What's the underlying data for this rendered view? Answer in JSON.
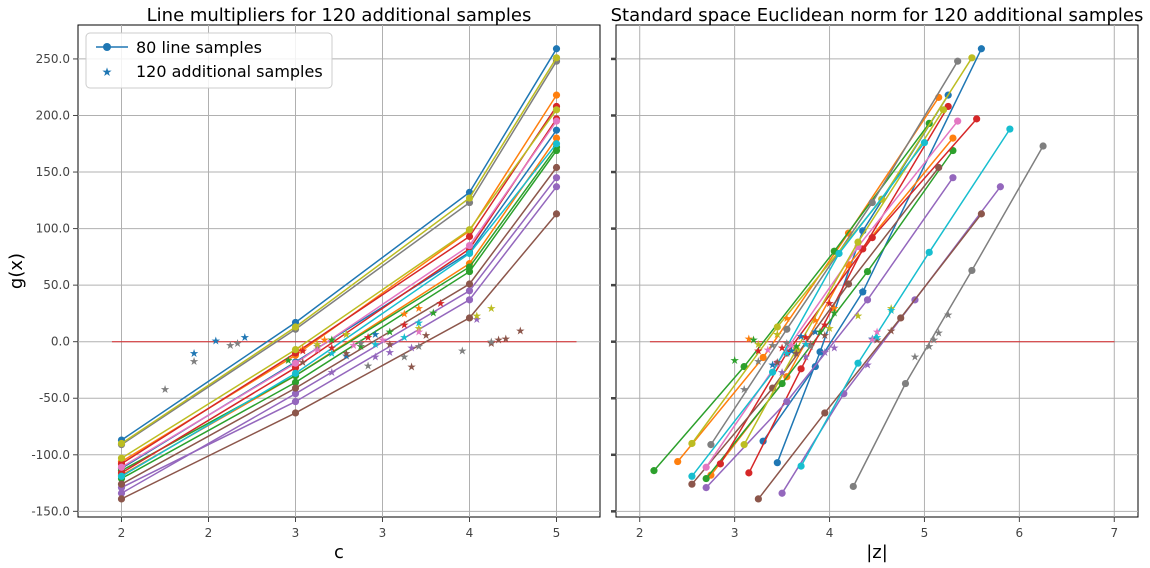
{
  "palette": [
    "#1f77b4",
    "#ff7f0e",
    "#2ca02c",
    "#d62728",
    "#9467bd",
    "#8c564b",
    "#e377c2",
    "#7f7f7f",
    "#bcbd22",
    "#17becf"
  ],
  "zero_line_color": "#d62728",
  "grid": true,
  "chart_data": [
    {
      "type": "line",
      "title": "Line multipliers for 120 additional samples",
      "xlabel": "c",
      "ylabel": "g(x)",
      "xlim": [
        1.7,
        5.3
      ],
      "ylim": [
        -155,
        280
      ],
      "xticks": [
        2,
        2.6,
        3.2,
        3.8,
        4.4,
        5.0
      ],
      "xtick_labels": [
        "2",
        "2",
        "3",
        "3",
        "4",
        "5"
      ],
      "yticks": [
        -150,
        -100,
        -50,
        0,
        50,
        100,
        150,
        200,
        250
      ],
      "ytick_labels": [
        "-150.0",
        "-100.0",
        "-50.0",
        "0.0",
        "50.0",
        "100.0",
        "150.0",
        "200.0",
        "250.0"
      ],
      "legend": {
        "placement": "top-left",
        "entries": [
          "80 line samples",
          "120 additional samples"
        ]
      },
      "x_samples": [
        2.0,
        3.2,
        4.4,
        5.0
      ],
      "series": [
        {
          "color": "#1f77b4",
          "y": [
            -87,
            17,
            132,
            259
          ]
        },
        {
          "color": "#1f77b4",
          "y": [
            -112,
            -18,
            79,
            187
          ]
        },
        {
          "color": "#ff7f0e",
          "y": [
            -106,
            -12,
            98,
            218
          ]
        },
        {
          "color": "#ff7f0e",
          "y": [
            -118,
            -30,
            69,
            180
          ]
        },
        {
          "color": "#2ca02c",
          "y": [
            -114,
            -30,
            66,
            172
          ]
        },
        {
          "color": "#2ca02c",
          "y": [
            -121,
            -36,
            62,
            169
          ]
        },
        {
          "color": "#d62728",
          "y": [
            -108,
            -10,
            93,
            208
          ]
        },
        {
          "color": "#d62728",
          "y": [
            -116,
            -23,
            82,
            197
          ]
        },
        {
          "color": "#9467bd",
          "y": [
            -129,
            -53,
            37,
            137
          ]
        },
        {
          "color": "#9467bd",
          "y": [
            -134,
            -46,
            45,
            145
          ]
        },
        {
          "color": "#8c564b",
          "y": [
            -139,
            -63,
            21,
            113
          ]
        },
        {
          "color": "#8c564b",
          "y": [
            -126,
            -41,
            51,
            154
          ]
        },
        {
          "color": "#e377c2",
          "y": [
            -111,
            -19,
            85,
            195
          ]
        },
        {
          "color": "#7f7f7f",
          "y": [
            -91,
            11,
            123,
            248
          ]
        },
        {
          "color": "#bcbd22",
          "y": [
            -103,
            -7,
            99,
            205
          ]
        },
        {
          "color": "#bcbd22",
          "y": [
            -90,
            13,
            127,
            251
          ]
        },
        {
          "color": "#17becf",
          "y": [
            -119,
            -28,
            78,
            175
          ]
        }
      ],
      "additional_samples": [
        {
          "color": "#1f77b4",
          "x": [
            2.5,
            2.65,
            2.85,
            3.55,
            3.75
          ],
          "y": [
            -10,
            1,
            4,
            -12,
            7
          ]
        },
        {
          "color": "#ff7f0e",
          "x": [
            3.25,
            3.4,
            3.55,
            3.95,
            4.05
          ],
          "y": [
            -6,
            2,
            7,
            25,
            30
          ]
        },
        {
          "color": "#2ca02c",
          "x": [
            3.15,
            3.45,
            3.65,
            3.85,
            4.15
          ],
          "y": [
            -16,
            2,
            -4,
            9,
            26
          ]
        },
        {
          "color": "#d62728",
          "x": [
            3.25,
            3.45,
            3.7,
            3.95,
            4.2
          ],
          "y": [
            -8,
            -5,
            4,
            15,
            34
          ]
        },
        {
          "color": "#9467bd",
          "x": [
            3.45,
            3.75,
            3.85,
            4.0,
            4.45
          ],
          "y": [
            -27,
            -13,
            -9,
            -5,
            20
          ]
        },
        {
          "color": "#8c564b",
          "x": [
            3.25,
            3.55,
            3.85,
            4.1,
            4.6,
            4.75
          ],
          "y": [
            -18,
            -10,
            -2,
            6,
            2,
            10
          ]
        },
        {
          "color": "#8c564b",
          "x": [
            4.0,
            4.55,
            4.65
          ],
          "y": [
            -22,
            -1,
            3
          ]
        },
        {
          "color": "#7f7f7f",
          "x": [
            2.3,
            2.5,
            2.75,
            2.8,
            3.35,
            3.65
          ],
          "y": [
            -42,
            -17,
            -3,
            -1,
            -4,
            -1
          ]
        },
        {
          "color": "#7f7f7f",
          "x": [
            3.7,
            3.95,
            4.05,
            4.35,
            4.55
          ],
          "y": [
            -21,
            -13,
            -4,
            -8,
            0
          ]
        },
        {
          "color": "#bcbd22",
          "x": [
            3.35,
            3.55,
            4.05,
            4.45,
            4.55
          ],
          "y": [
            -2,
            7,
            12,
            23,
            30
          ]
        },
        {
          "color": "#17becf",
          "x": [
            3.45,
            3.75,
            3.95,
            4.05
          ],
          "y": [
            -10,
            -2,
            4,
            17
          ]
        },
        {
          "color": "#e377c2",
          "x": [
            3.35,
            3.6,
            3.8,
            4.05
          ],
          "y": [
            -7,
            -3,
            2,
            9
          ]
        }
      ]
    },
    {
      "type": "line",
      "title": "Standard space Euclidean norm for 120 additional samples",
      "xlabel": "|z|",
      "ylabel": "",
      "xlim": [
        1.75,
        7.25
      ],
      "ylim": [
        -155,
        280
      ],
      "xticks": [
        2,
        3,
        4,
        5,
        6,
        7
      ],
      "xtick_labels": [
        "2",
        "3",
        "4",
        "5",
        "6",
        "7"
      ],
      "yticks": [
        -150,
        -100,
        -50,
        0,
        50,
        100,
        150,
        200,
        250
      ],
      "ytick_labels": [],
      "series": [
        {
          "color": "#1f77b4",
          "x": [
            3.45,
            3.9,
            4.35,
            5.25
          ],
          "y": [
            -107,
            -9,
            98,
            218
          ]
        },
        {
          "color": "#1f77b4",
          "x": [
            3.3,
            3.85,
            4.35,
            5.6
          ],
          "y": [
            -88,
            -22,
            44,
            259
          ]
        },
        {
          "color": "#ff7f0e",
          "x": [
            2.4,
            3.3,
            4.2,
            5.15
          ],
          "y": [
            -106,
            -14,
            96,
            216
          ]
        },
        {
          "color": "#ff7f0e",
          "x": [
            2.75,
            3.55,
            4.2,
            5.3
          ],
          "y": [
            -118,
            -31,
            68,
            180
          ]
        },
        {
          "color": "#2ca02c",
          "x": [
            2.15,
            3.1,
            4.05,
            5.05
          ],
          "y": [
            -114,
            -22,
            80,
            193
          ]
        },
        {
          "color": "#2ca02c",
          "x": [
            2.7,
            3.5,
            4.4,
            5.3
          ],
          "y": [
            -121,
            -37,
            62,
            169
          ]
        },
        {
          "color": "#d62728",
          "x": [
            3.15,
            3.7,
            4.35,
            5.25
          ],
          "y": [
            -116,
            -24,
            82,
            208
          ]
        },
        {
          "color": "#d62728",
          "x": [
            2.85,
            3.55,
            4.45,
            5.55
          ],
          "y": [
            -108,
            -10,
            92,
            197
          ]
        },
        {
          "color": "#9467bd",
          "x": [
            2.7,
            3.55,
            4.4,
            5.3
          ],
          "y": [
            -129,
            -53,
            37,
            145
          ]
        },
        {
          "color": "#9467bd",
          "x": [
            3.5,
            4.15,
            4.9,
            5.8
          ],
          "y": [
            -134,
            -46,
            37,
            137
          ]
        },
        {
          "color": "#8c564b",
          "x": [
            3.25,
            3.95,
            4.75,
            5.6
          ],
          "y": [
            -139,
            -63,
            21,
            113
          ]
        },
        {
          "color": "#8c564b",
          "x": [
            2.55,
            3.4,
            4.2,
            5.15
          ],
          "y": [
            -126,
            -41,
            51,
            154
          ]
        },
        {
          "color": "#e377c2",
          "x": [
            2.7,
            3.45,
            4.3,
            5.35
          ],
          "y": [
            -111,
            -19,
            84,
            195
          ]
        },
        {
          "color": "#7f7f7f",
          "x": [
            2.75,
            3.55,
            4.45,
            5.35
          ],
          "y": [
            -91,
            11,
            123,
            248
          ]
        },
        {
          "color": "#7f7f7f",
          "x": [
            4.25,
            4.8,
            5.5,
            6.25
          ],
          "y": [
            -128,
            -37,
            63,
            173
          ]
        },
        {
          "color": "#bcbd22",
          "x": [
            3.1,
            3.65,
            4.3,
            5.2
          ],
          "y": [
            -91,
            -7,
            88,
            205
          ]
        },
        {
          "color": "#bcbd22",
          "x": [
            2.55,
            3.45,
            4.55,
            5.5
          ],
          "y": [
            -90,
            13,
            126,
            251
          ]
        },
        {
          "color": "#17becf",
          "x": [
            2.55,
            3.4,
            4.1,
            5.0
          ],
          "y": [
            -119,
            -27,
            78,
            176
          ]
        },
        {
          "color": "#17becf",
          "x": [
            3.7,
            4.3,
            5.05,
            5.9
          ],
          "y": [
            -110,
            -19,
            79,
            188
          ]
        }
      ],
      "additional_samples": [
        {
          "color": "#1f77b4",
          "x": [
            3.4,
            3.6,
            3.7,
            3.85,
            4.35,
            4.45
          ],
          "y": [
            -20,
            -8,
            5,
            9,
            45,
            3
          ]
        },
        {
          "color": "#ff7f0e",
          "x": [
            3.15,
            3.45,
            3.55,
            3.85,
            4.05
          ],
          "y": [
            3,
            7,
            21,
            19,
            30
          ]
        },
        {
          "color": "#2ca02c",
          "x": [
            3.0,
            3.2,
            3.65,
            3.9,
            4.05
          ],
          "y": [
            -16,
            2,
            -4,
            9,
            26
          ]
        },
        {
          "color": "#d62728",
          "x": [
            3.25,
            3.5,
            3.75,
            3.95,
            4.0
          ],
          "y": [
            -8,
            -5,
            4,
            15,
            34
          ]
        },
        {
          "color": "#9467bd",
          "x": [
            3.5,
            3.75,
            3.95,
            4.05,
            4.4
          ],
          "y": [
            -27,
            -13,
            -9,
            -5,
            -20
          ]
        },
        {
          "color": "#8c564b",
          "x": [
            3.45,
            3.65,
            3.8,
            3.95,
            4.5,
            4.65
          ],
          "y": [
            -18,
            -10,
            -2,
            6,
            2,
            10
          ]
        },
        {
          "color": "#7f7f7f",
          "x": [
            3.1,
            3.25,
            3.4,
            3.55,
            3.8
          ],
          "y": [
            -42,
            -17,
            -3,
            -1,
            -4
          ]
        },
        {
          "color": "#7f7f7f",
          "x": [
            4.9,
            5.05,
            5.1,
            5.15,
            5.25
          ],
          "y": [
            -13,
            -4,
            2,
            8,
            24
          ]
        },
        {
          "color": "#bcbd22",
          "x": [
            3.25,
            3.45,
            4.0,
            4.3,
            4.65
          ],
          "y": [
            -2,
            7,
            12,
            23,
            30
          ]
        },
        {
          "color": "#17becf",
          "x": [
            3.55,
            3.75,
            4.5,
            4.65
          ],
          "y": [
            -10,
            -2,
            4,
            28
          ]
        },
        {
          "color": "#e377c2",
          "x": [
            3.35,
            3.6,
            4.45,
            4.5
          ],
          "y": [
            -7,
            -3,
            2,
            9
          ]
        }
      ]
    }
  ]
}
